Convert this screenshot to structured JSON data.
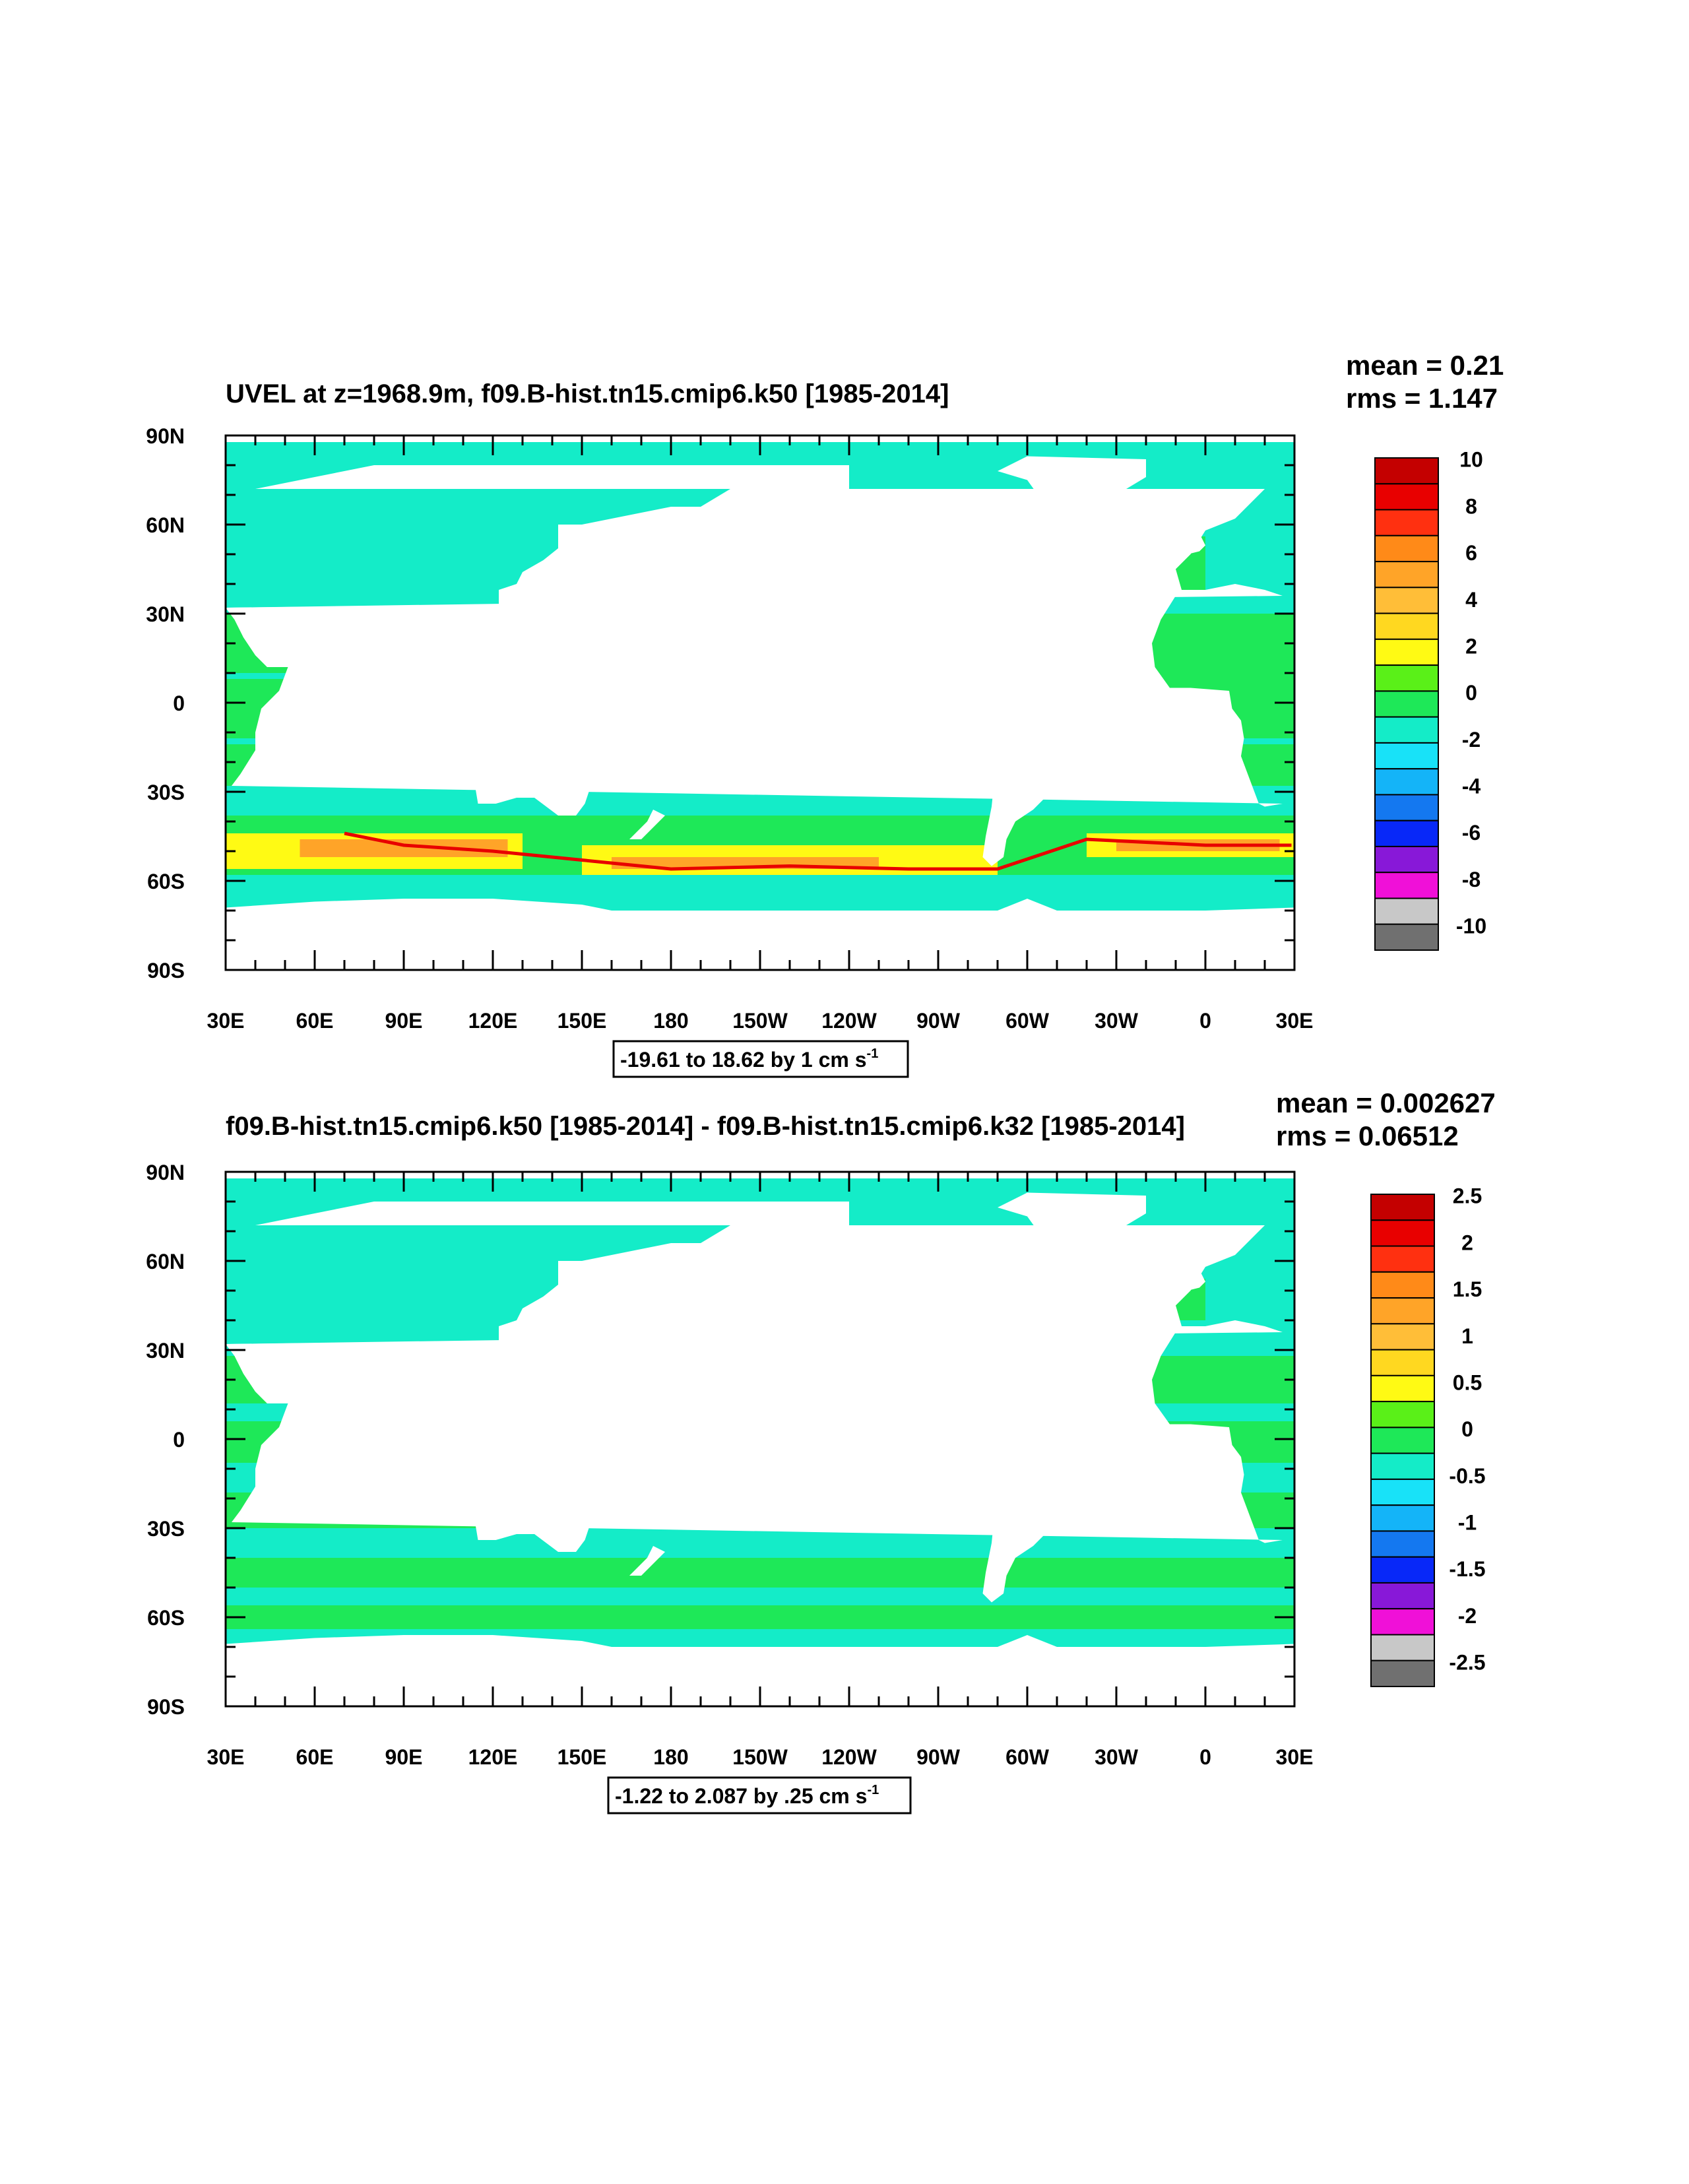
{
  "panels": [
    {
      "title": "UVEL at z=1968.9m, f09.B-hist.tn15.cmip6.k50 [1985-2014]",
      "stats": {
        "mean": "mean = 0.21",
        "rms": "rms = 1.147"
      },
      "info_box": {
        "text": "-19.61 to 18.62 by 1 cm s",
        "unit_exp": "-1"
      },
      "colorbar_labels": [
        "10",
        "8",
        "6",
        "4",
        "2",
        "0",
        "-2",
        "-4",
        "-6",
        "-8",
        "-10"
      ],
      "variant": "mean"
    },
    {
      "title": "f09.B-hist.tn15.cmip6.k50 [1985-2014] - f09.B-hist.tn15.cmip6.k32 [1985-2014]",
      "stats": {
        "mean": "mean = 0.002627",
        "rms": "rms = 0.06512"
      },
      "info_box": {
        "text": "-1.22 to 2.087 by .25 cm s",
        "unit_exp": "-1"
      },
      "colorbar_labels": [
        "2.5",
        "2",
        "1.5",
        "1",
        "0.5",
        "0",
        "-0.5",
        "-1",
        "-1.5",
        "-2",
        "-2.5"
      ],
      "variant": "diff"
    }
  ],
  "lat_labels": [
    "90N",
    "60N",
    "30N",
    "0",
    "30S",
    "60S",
    "90S"
  ],
  "lon_labels": [
    "30E",
    "60E",
    "90E",
    "120E",
    "150E",
    "180",
    "150W",
    "120W",
    "90W",
    "60W",
    "30W",
    "0",
    "30E"
  ],
  "colors": {
    "colorbar": [
      "#c40000",
      "#e80000",
      "#ff3010",
      "#ff8a18",
      "#ffa428",
      "#ffbe38",
      "#ffd820",
      "#fffa14",
      "#5af018",
      "#1ee858",
      "#14ecc8",
      "#18e2f8",
      "#14b4f8",
      "#1478f0",
      "#0828f8",
      "#8818d8",
      "#f010d8",
      "#c8c8c8",
      "#707070"
    ],
    "ocean_cyan": "#14ecc8",
    "ocean_green": "#1ee858",
    "ocean_light_green": "#5af018",
    "ocean_yellow": "#fffa14",
    "ocean_orange": "#ffa428",
    "ocean_red": "#e80000",
    "ocean_blue": "#1478f0",
    "land": "#ffffff"
  }
}
